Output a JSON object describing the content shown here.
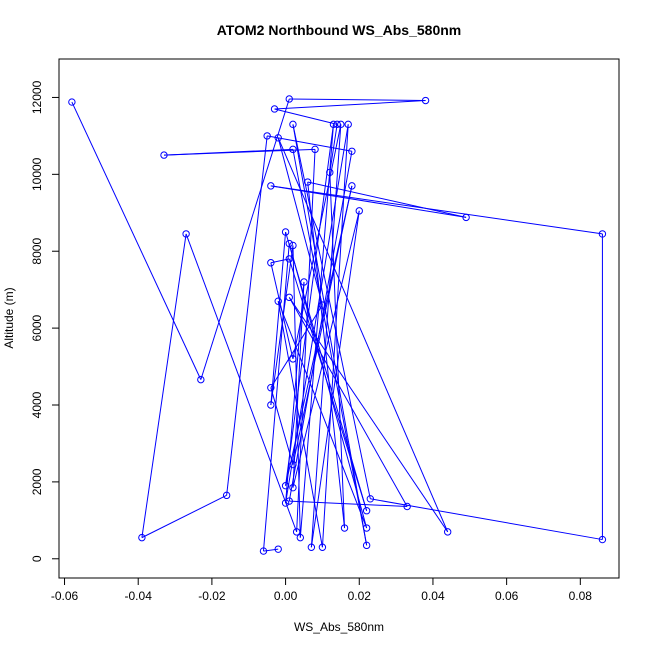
{
  "chart_data": {
    "type": "line",
    "title": "ATOM2 Northbound WS_Abs_580nm",
    "xlabel": "WS_Abs_580nm",
    "ylabel": "Altitude (m)",
    "xlim": [
      -0.0615,
      0.0905
    ],
    "ylim": [
      -500,
      13000
    ],
    "xticks": [
      -0.06,
      -0.04,
      -0.02,
      0.0,
      0.02,
      0.04,
      0.06,
      0.08
    ],
    "xtick_labels": [
      "-0.06",
      "-0.04",
      "-0.02",
      "0.00",
      "0.02",
      "0.04",
      "0.06",
      "0.08"
    ],
    "yticks": [
      0,
      2000,
      4000,
      6000,
      8000,
      10000,
      12000
    ],
    "ytick_labels": [
      "0",
      "2000",
      "4000",
      "6000",
      "8000",
      "10000",
      "12000"
    ],
    "grid": false,
    "marker": "open-circle",
    "color": "#0000ff",
    "series": [
      {
        "name": "",
        "points": [
          [
            -0.058,
            11880
          ],
          [
            -0.023,
            4660
          ],
          [
            0.001,
            11960
          ],
          [
            0.038,
            11920
          ],
          [
            -0.003,
            11700
          ],
          [
            0.014,
            11300
          ],
          [
            0.012,
            10050
          ],
          [
            0.016,
            800
          ],
          [
            0.006,
            9800
          ],
          [
            0.049,
            8880
          ],
          [
            -0.004,
            9700
          ],
          [
            0.086,
            8450
          ],
          [
            0.086,
            500
          ],
          [
            0.023,
            1560
          ],
          [
            0.002,
            11300
          ],
          [
            0.022,
            350
          ],
          [
            0.002,
            10650
          ],
          [
            -0.033,
            10500
          ],
          [
            0.008,
            10650
          ],
          [
            0.003,
            700
          ],
          [
            -0.027,
            8450
          ],
          [
            -0.039,
            550
          ],
          [
            -0.016,
            1650
          ],
          [
            -0.005,
            11000
          ],
          [
            0.018,
            10600
          ],
          [
            0.001,
            1500
          ],
          [
            0.033,
            1360
          ],
          [
            0.001,
            6800
          ],
          [
            0.044,
            700
          ],
          [
            -0.002,
            10950
          ],
          [
            0.01,
            6600
          ],
          [
            -0.004,
            4450
          ],
          [
            0.002,
            2450
          ],
          [
            0.018,
            9700
          ],
          [
            0.0,
            1900
          ],
          [
            0.013,
            11300
          ],
          [
            0.004,
            550
          ],
          [
            0.002,
            8150
          ],
          [
            -0.004,
            4000
          ],
          [
            0.0,
            8500
          ],
          [
            0.022,
            1250
          ],
          [
            0.001,
            7800
          ],
          [
            -0.004,
            7700
          ],
          [
            0.002,
            5200
          ],
          [
            0.015,
            11300
          ],
          [
            0.007,
            300
          ],
          [
            0.02,
            9050
          ],
          [
            0.002,
            1850
          ],
          [
            0.005,
            7200
          ],
          [
            0.0,
            1450
          ],
          [
            0.017,
            11300
          ],
          [
            0.01,
            300
          ],
          [
            -0.002,
            6700
          ],
          [
            0.022,
            800
          ],
          [
            0.001,
            8200
          ],
          [
            -0.006,
            200
          ],
          [
            -0.002,
            250
          ]
        ]
      }
    ]
  }
}
